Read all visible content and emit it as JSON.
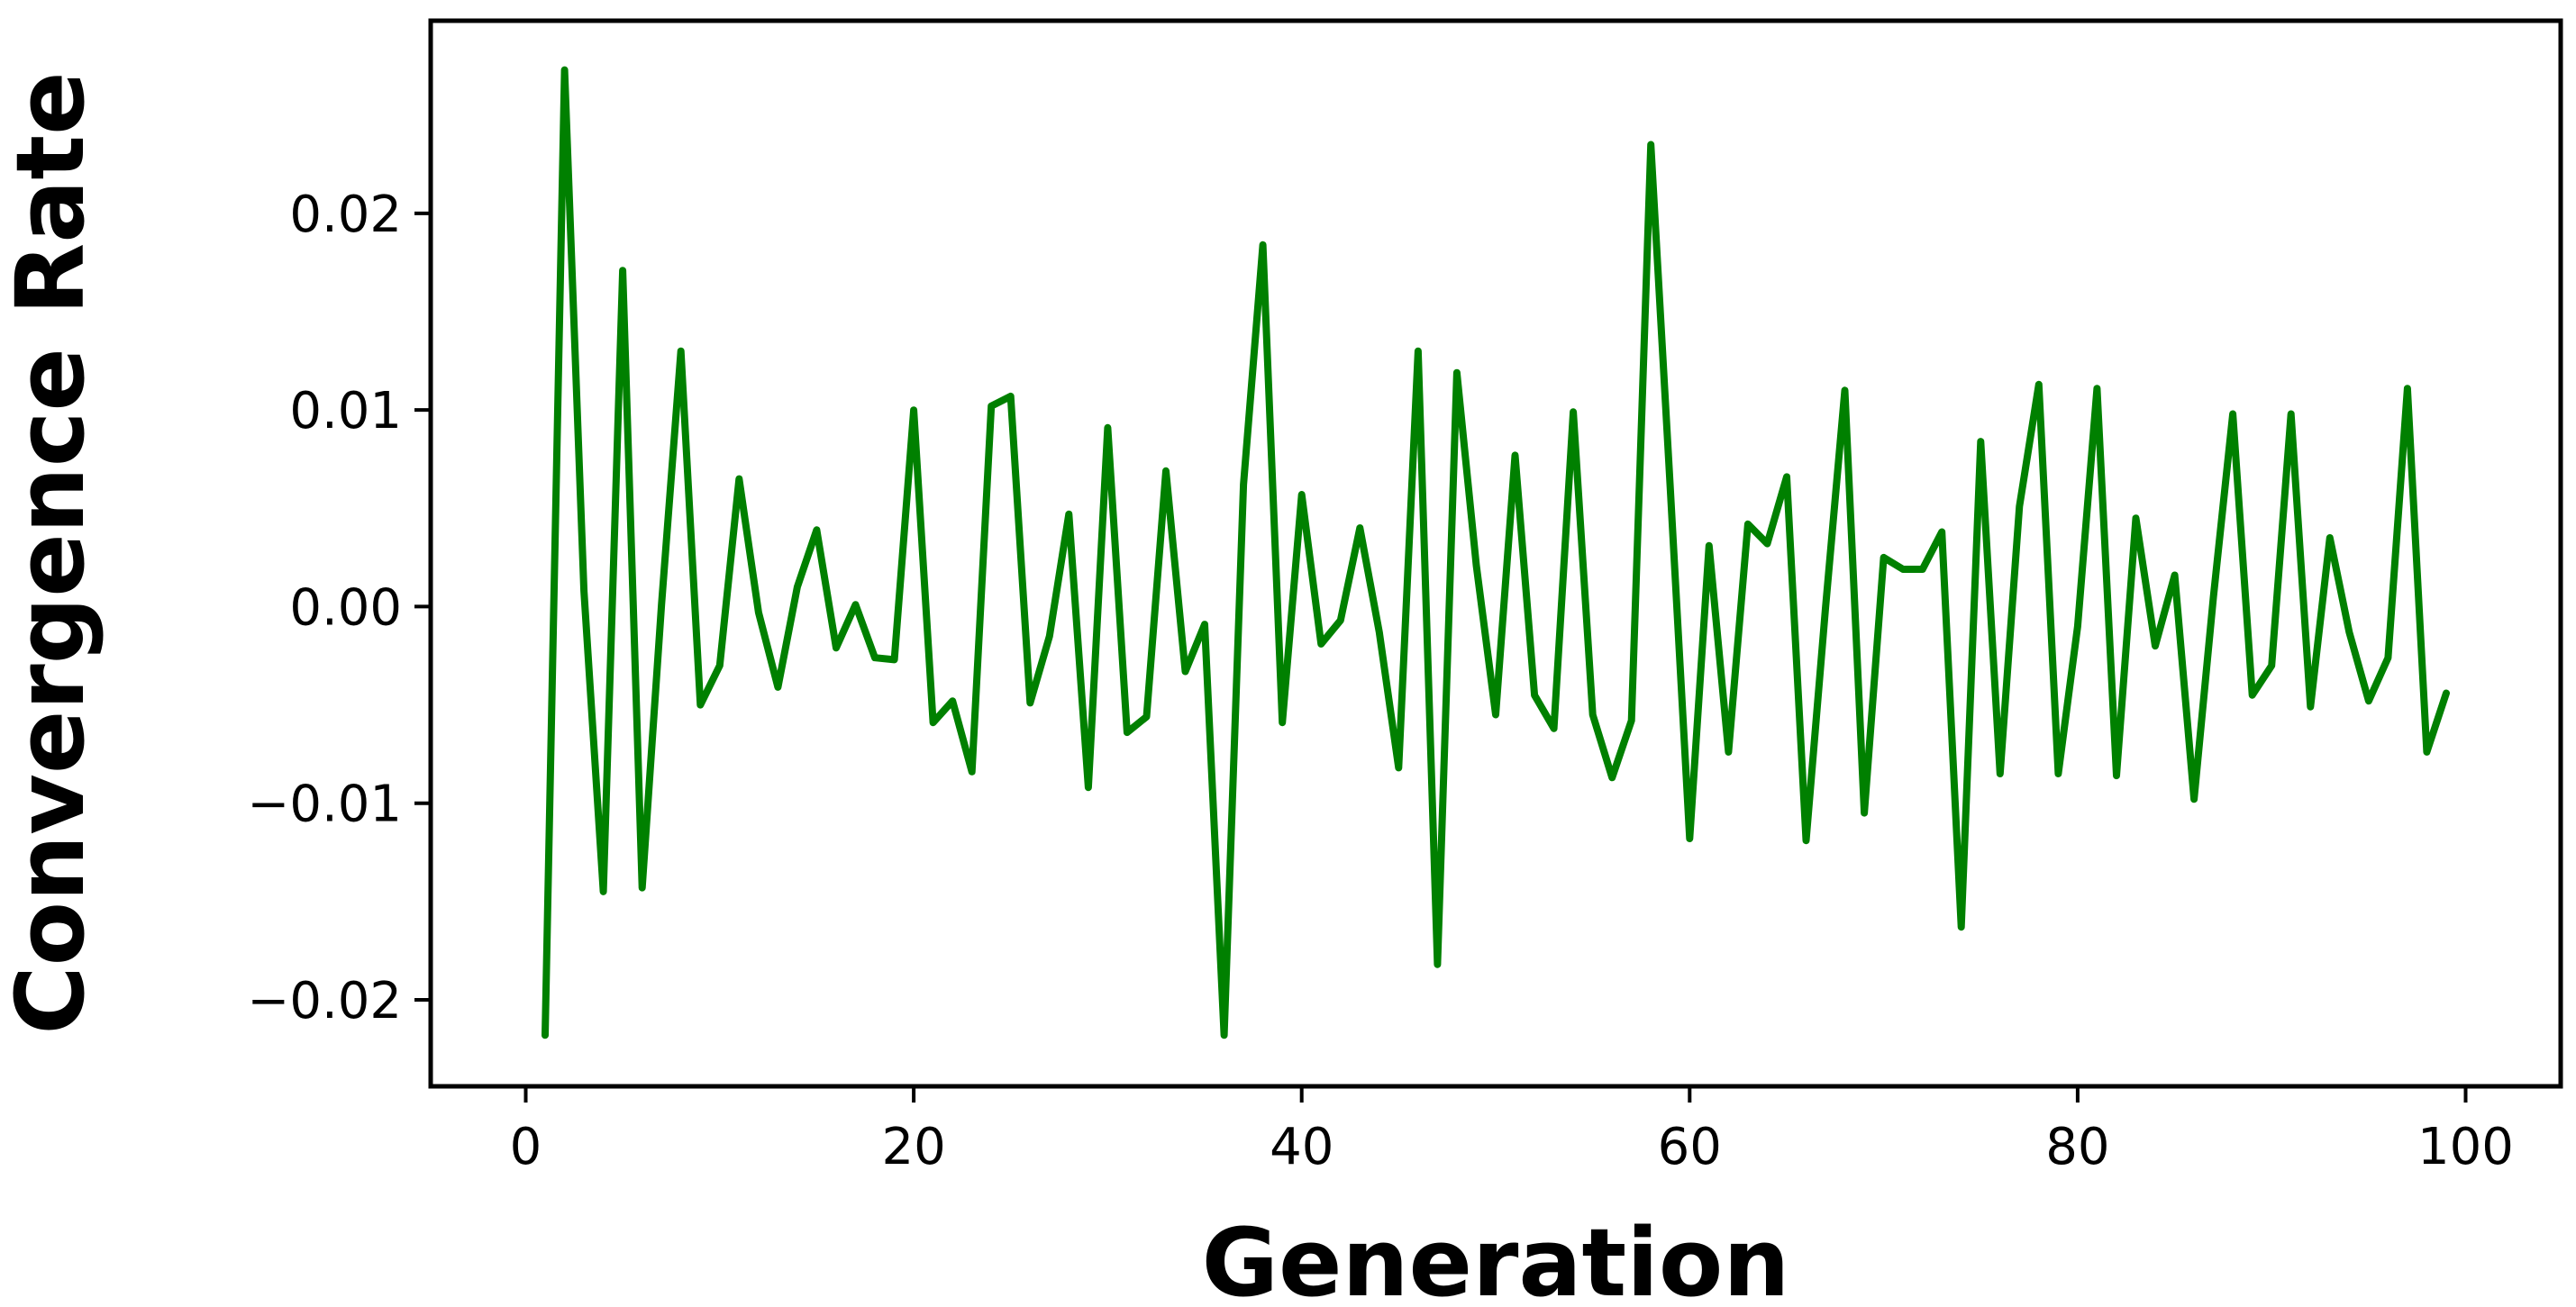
{
  "chart_data": {
    "type": "line",
    "title": "",
    "xlabel": "Generation",
    "ylabel": "Convergence Rate",
    "xlim": [
      -4.9,
      104.9
    ],
    "ylim": [
      -0.0244,
      0.0298
    ],
    "x_ticks": [
      0,
      20,
      40,
      60,
      80,
      100
    ],
    "y_ticks": [
      -0.02,
      -0.01,
      0.0,
      0.01,
      0.02
    ],
    "x_tick_labels": [
      "0",
      "20",
      "40",
      "60",
      "80",
      "100"
    ],
    "y_tick_labels": [
      "−0.02",
      "−0.01",
      "0.00",
      "0.01",
      "0.02"
    ],
    "grid": false,
    "legend": "none",
    "line_color": "#008000",
    "series": [
      {
        "x": [
          1,
          2,
          3,
          4,
          5,
          6,
          7,
          8,
          9,
          10,
          11,
          12,
          13,
          14,
          15,
          16,
          17,
          18,
          19,
          20,
          21,
          22,
          23,
          24,
          25,
          26,
          27,
          28,
          29,
          30,
          31,
          32,
          33,
          34,
          35,
          36,
          37,
          38,
          39,
          40,
          41,
          42,
          43,
          44,
          45,
          46,
          47,
          48,
          49,
          50,
          51,
          52,
          53,
          54,
          55,
          56,
          57,
          58,
          59,
          60,
          61,
          62,
          63,
          64,
          65,
          66,
          67,
          68,
          69,
          70,
          71,
          72,
          73,
          74,
          75,
          76,
          77,
          78,
          79,
          80,
          81,
          82,
          83,
          84,
          85,
          86,
          87,
          88,
          89,
          90,
          91,
          92,
          93,
          94,
          95,
          96,
          97,
          98,
          99
        ],
        "values": [
          -0.0218,
          0.0273,
          0.0008,
          -0.0145,
          0.0171,
          -0.0143,
          0.0001,
          0.013,
          -0.005,
          -0.003,
          0.0065,
          -0.0003,
          -0.0041,
          0.001,
          0.0039,
          -0.0021,
          0.0001,
          -0.0026,
          -0.0027,
          0.01,
          -0.0059,
          -0.0048,
          -0.0084,
          0.0102,
          0.0107,
          -0.0049,
          -0.0015,
          0.0047,
          -0.0092,
          0.0091,
          -0.0064,
          -0.0056,
          0.0069,
          -0.0033,
          -0.0009,
          -0.0218,
          0.0062,
          0.0184,
          -0.0059,
          0.0057,
          -0.0019,
          -0.0007,
          0.004,
          -0.0013,
          -0.0082,
          0.013,
          -0.0182,
          0.0119,
          0.0021,
          -0.0055,
          0.0077,
          -0.0045,
          -0.0062,
          0.0099,
          -0.0055,
          -0.0087,
          -0.0058,
          0.0235,
          0.006,
          -0.0118,
          0.0031,
          -0.0074,
          0.0042,
          0.0032,
          0.0066,
          -0.0119,
          -0.0001,
          0.011,
          -0.0105,
          0.0025,
          0.0019,
          0.0019,
          0.0038,
          -0.0163,
          0.0084,
          -0.0085,
          0.0051,
          0.0113,
          -0.0085,
          -0.001,
          0.0111,
          -0.0086,
          0.0045,
          -0.002,
          0.0016,
          -0.0098,
          0.0005,
          0.0098,
          -0.0045,
          -0.003,
          0.0098,
          -0.0051,
          0.0035,
          -0.0013,
          -0.0048,
          -0.0026,
          0.0111,
          -0.0074,
          -0.0044
        ]
      }
    ]
  }
}
